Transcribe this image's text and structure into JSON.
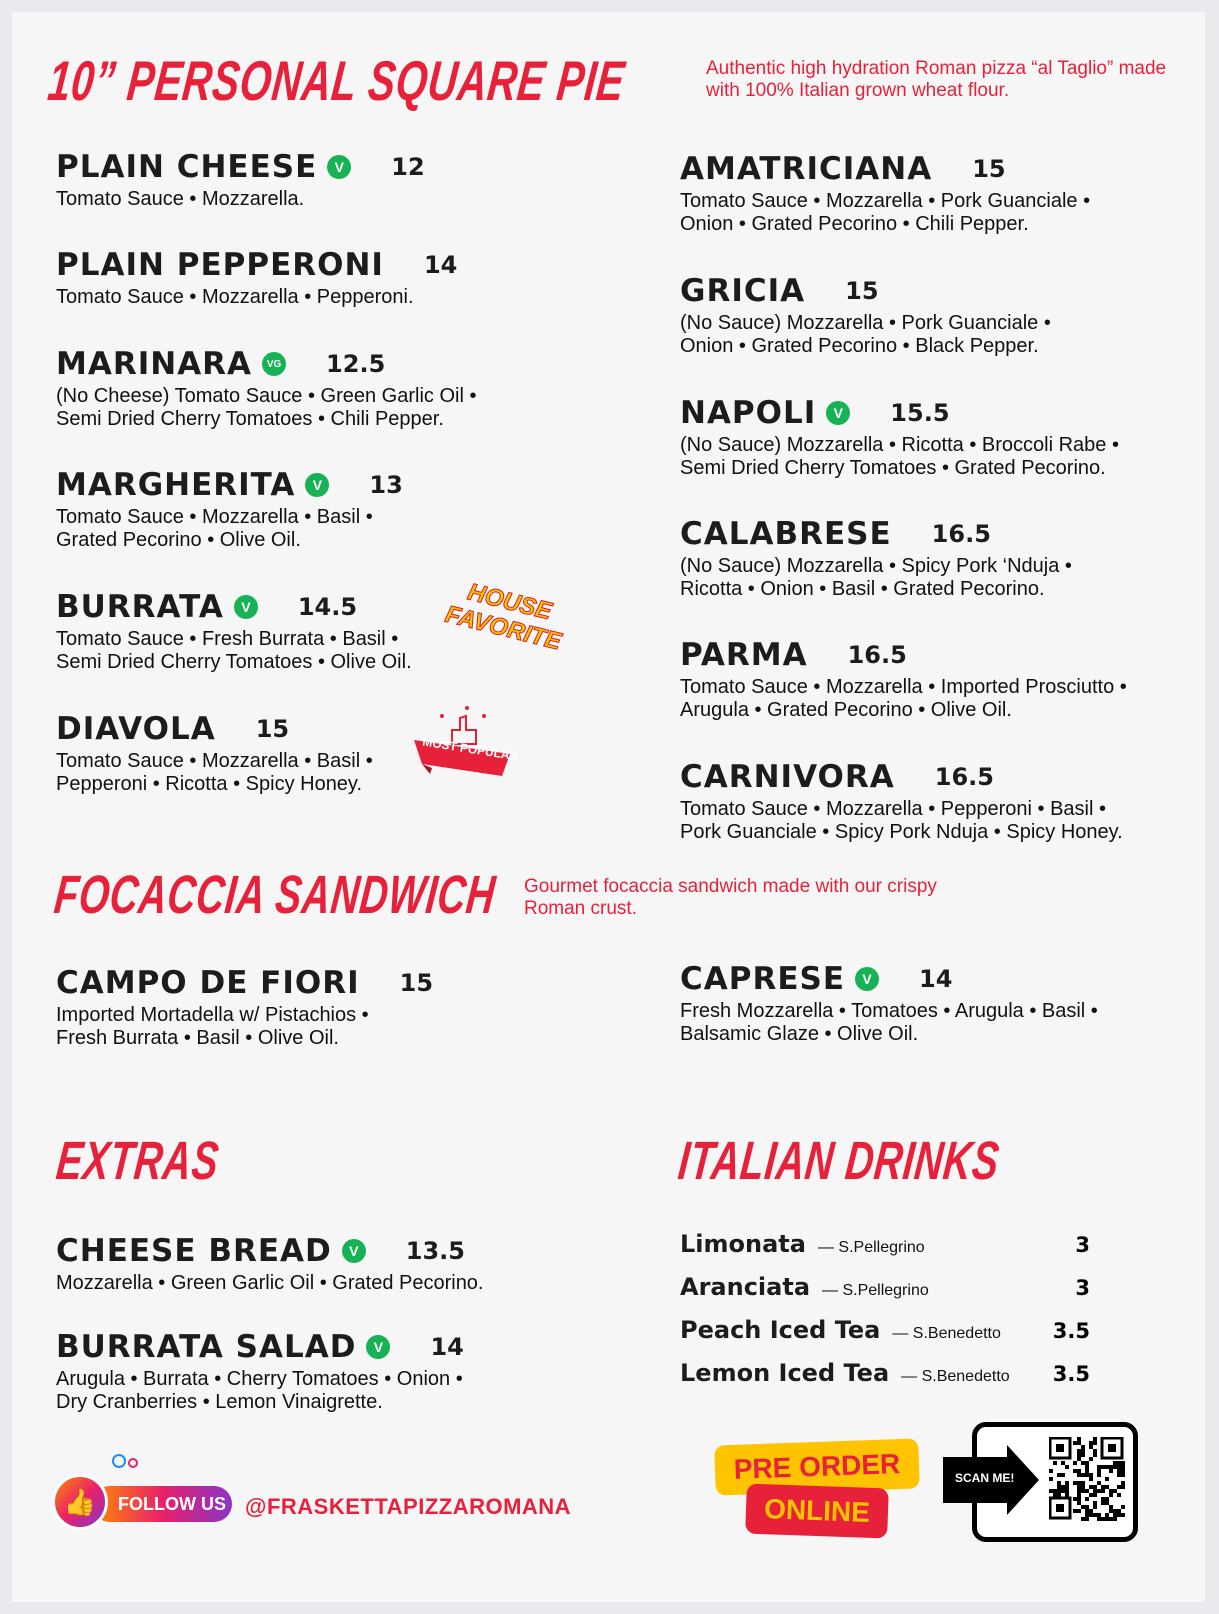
{
  "colors": {
    "accent": "#e8213a",
    "veg_badge": "#17b256",
    "yellow": "#ffc400"
  },
  "pizza": {
    "title": "10” PERSONAL SQUARE PIE",
    "note": "Authentic high hydration Roman pizza “al Taglio” made with 100% Italian grown wheat flour.",
    "left": [
      {
        "name": "PLAIN CHEESE",
        "badge": "V",
        "price": "12",
        "desc": "Tomato Sauce • Mozzarella."
      },
      {
        "name": "PLAIN PEPPERONI",
        "badge": "",
        "price": "14",
        "desc": "Tomato Sauce • Mozzarella • Pepperoni."
      },
      {
        "name": "MARINARA",
        "badge": "VG",
        "price": "12.5",
        "desc": "(No Cheese) Tomato Sauce • Green Garlic Oil •\nSemi Dried Cherry Tomatoes • Chili Pepper."
      },
      {
        "name": "MARGHERITA",
        "badge": "V",
        "price": "13",
        "desc": "Tomato Sauce • Mozzarella • Basil •\nGrated Pecorino • Olive Oil."
      },
      {
        "name": "BURRATA",
        "badge": "V",
        "price": "14.5",
        "desc": "Tomato Sauce • Fresh Burrata • Basil •\nSemi Dried Cherry Tomatoes • Olive Oil."
      },
      {
        "name": "DIAVOLA",
        "badge": "",
        "price": "15",
        "desc": "Tomato Sauce • Mozzarella • Basil •\nPepperoni • Ricotta • Spicy Honey."
      }
    ],
    "right": [
      {
        "name": "AMATRICIANA",
        "badge": "",
        "price": "15",
        "desc": "Tomato Sauce • Mozzarella • Pork Guanciale •\nOnion • Grated Pecorino • Chili Pepper."
      },
      {
        "name": "GRICIA",
        "badge": "",
        "price": "15",
        "desc": "(No Sauce) Mozzarella • Pork Guanciale •\nOnion • Grated Pecorino • Black Pepper."
      },
      {
        "name": "NAPOLI",
        "badge": "V",
        "price": "15.5",
        "desc": "(No Sauce) Mozzarella • Ricotta • Broccoli Rabe •\nSemi Dried Cherry Tomatoes • Grated Pecorino."
      },
      {
        "name": "CALABRESE",
        "badge": "",
        "price": "16.5",
        "desc": "(No Sauce) Mozzarella • Spicy Pork ‘Nduja •\nRicotta • Onion • Basil • Grated Pecorino."
      },
      {
        "name": "PARMA",
        "badge": "",
        "price": "16.5",
        "desc": "Tomato Sauce • Mozzarella • Imported Prosciutto •\nArugula • Grated Pecorino • Olive Oil."
      },
      {
        "name": "CARNIVORA",
        "badge": "",
        "price": "16.5",
        "desc": "Tomato Sauce • Mozzarella • Pepperoni • Basil •\nPork Guanciale • Spicy Pork Nduja • Spicy Honey."
      }
    ],
    "house_favorite": "HOUSE FAVORITE",
    "most_popular": "MOST POPULAR"
  },
  "focaccia": {
    "title": "FOCACCIA SANDWICH",
    "note": "Gourmet focaccia sandwich made with our crispy Roman crust.",
    "left": [
      {
        "name": "CAMPO DE FIORI",
        "badge": "",
        "price": "15",
        "desc": "Imported Mortadella w/ Pistachios •\nFresh Burrata • Basil • Olive Oil."
      }
    ],
    "right": [
      {
        "name": "CAPRESE",
        "badge": "V",
        "price": "14",
        "desc": "Fresh Mozzarella • Tomatoes • Arugula • Basil •\nBalsamic Glaze • Olive Oil."
      }
    ]
  },
  "extras": {
    "title": "EXTRAS",
    "items": [
      {
        "name": "CHEESE BREAD",
        "badge": "V",
        "price": "13.5",
        "desc": "Mozzarella • Green Garlic Oil • Grated Pecorino."
      },
      {
        "name": "BURRATA SALAD",
        "badge": "V",
        "price": "14",
        "desc": "Arugula • Burrata • Cherry Tomatoes • Onion •\nDry Cranberries • Lemon Vinaigrette."
      }
    ]
  },
  "drinks": {
    "title": "ITALIAN DRINKS",
    "items": [
      {
        "name": "Limonata",
        "maker": "— S.Pellegrino",
        "price": "3"
      },
      {
        "name": "Aranciata",
        "maker": "— S.Pellegrino",
        "price": "3"
      },
      {
        "name": "Peach Iced Tea",
        "maker": "— S.Benedetto",
        "price": "3.5"
      },
      {
        "name": "Lemon Iced Tea",
        "maker": "— S.Benedetto",
        "price": "3.5"
      }
    ]
  },
  "footer": {
    "follow_label": "FOLLOW US",
    "handle": "@FRASKETTAPIZZAROMANA",
    "preorder_line1": "PRE ORDER",
    "preorder_line2": "ONLINE",
    "scan_label": "SCAN ME!"
  }
}
